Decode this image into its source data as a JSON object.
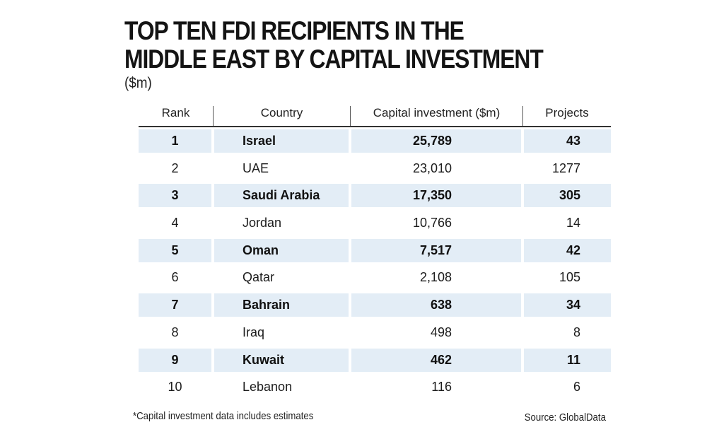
{
  "chart_data": {
    "type": "table",
    "title": "TOP TEN FDI RECIPIENTS IN THE MIDDLE EAST BY CAPITAL INVESTMENT",
    "subtitle": "($m)",
    "columns": [
      "Rank",
      "Country",
      "Capital investment ($m)",
      "Projects"
    ],
    "rows": [
      {
        "rank": "1",
        "country": "Israel",
        "investment": "25,789",
        "projects": "43"
      },
      {
        "rank": "2",
        "country": "UAE",
        "investment": "23,010",
        "projects": "1277"
      },
      {
        "rank": "3",
        "country": "Saudi Arabia",
        "investment": "17,350",
        "projects": "305"
      },
      {
        "rank": "4",
        "country": "Jordan",
        "investment": "10,766",
        "projects": "14"
      },
      {
        "rank": "5",
        "country": "Oman",
        "investment": "7,517",
        "projects": "42"
      },
      {
        "rank": "6",
        "country": "Qatar",
        "investment": "2,108",
        "projects": "105"
      },
      {
        "rank": "7",
        "country": "Bahrain",
        "investment": "638",
        "projects": "34"
      },
      {
        "rank": "8",
        "country": "Iraq",
        "investment": "498",
        "projects": "8"
      },
      {
        "rank": "9",
        "country": "Kuwait",
        "investment": "462",
        "projects": "11"
      },
      {
        "rank": "10",
        "country": "Lebanon",
        "investment": "116",
        "projects": "6"
      }
    ],
    "footnote": "*Capital investment data includes estimates",
    "source": "Source: GlobalData"
  },
  "colors": {
    "highlight_row": "#e3edf6",
    "text": "#1a1a1a"
  }
}
